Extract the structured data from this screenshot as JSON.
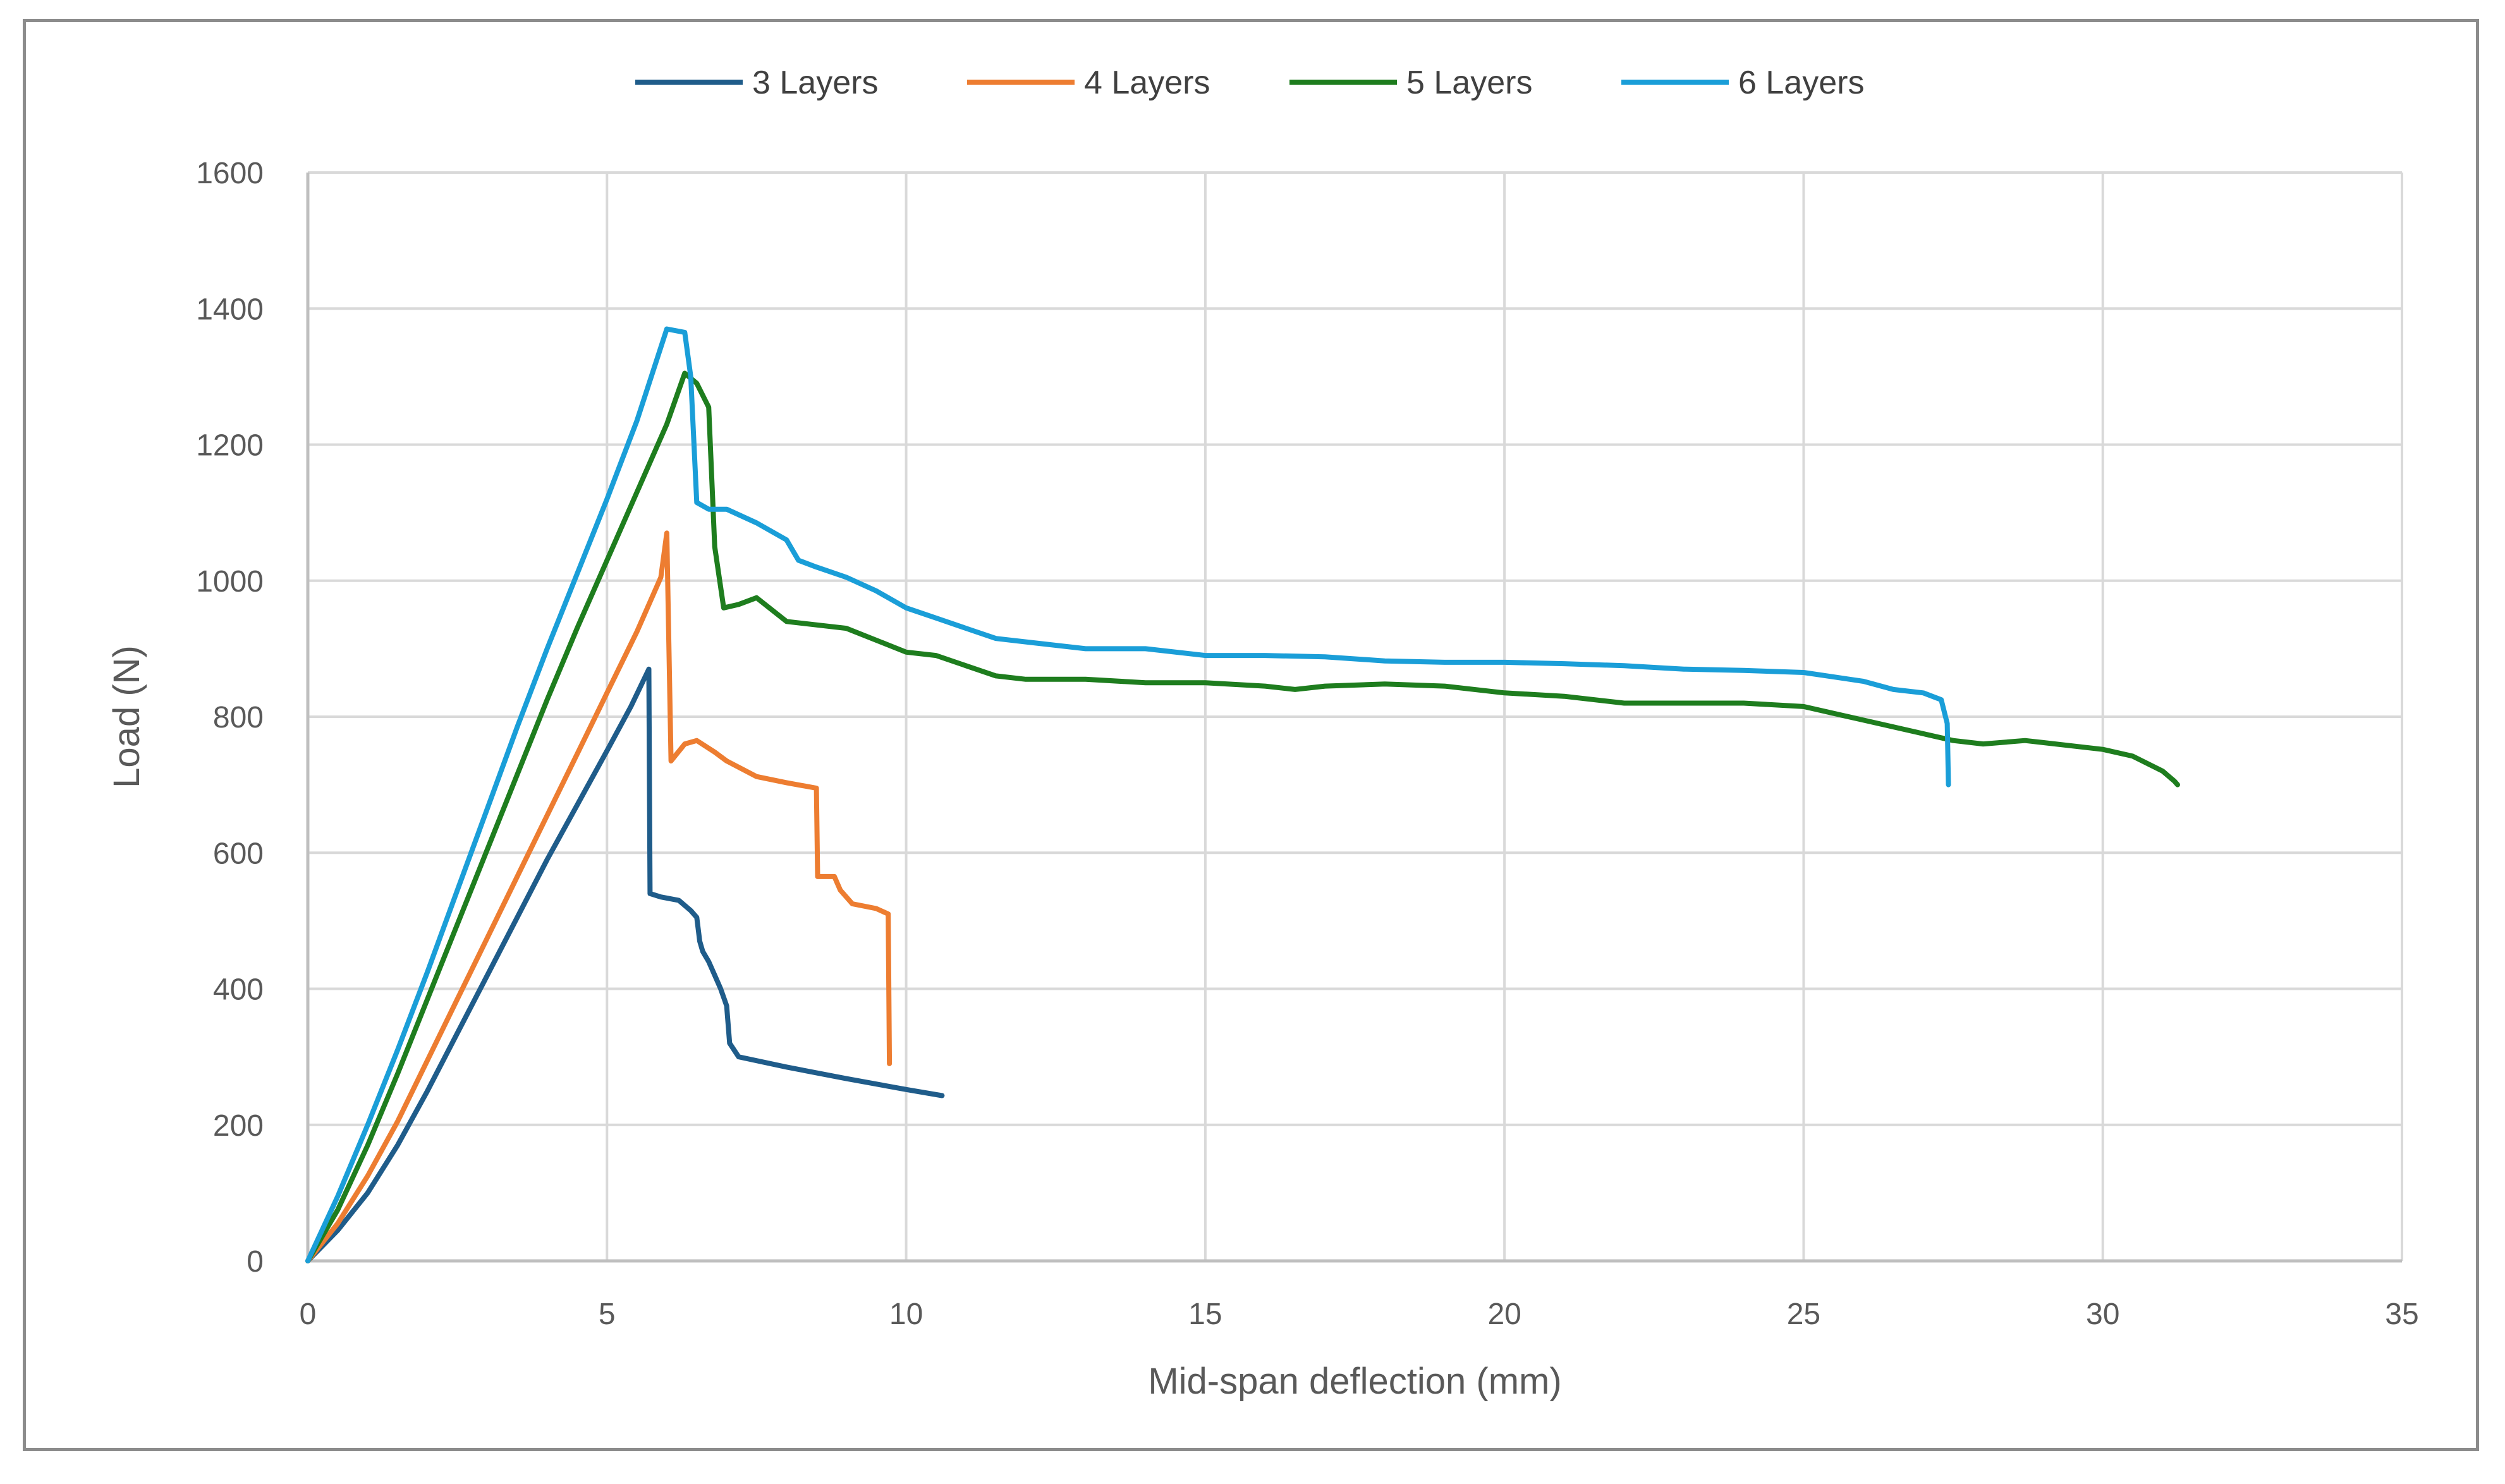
{
  "chart_data": {
    "type": "line",
    "title": "",
    "xlabel": "Mid-span deflection (mm)",
    "ylabel": "Load (N)",
    "xlim": [
      0,
      35
    ],
    "ylim": [
      0,
      1600
    ],
    "xticks": [
      "0",
      "5",
      "10",
      "15",
      "20",
      "25",
      "30",
      "35"
    ],
    "yticks": [
      "0",
      "200",
      "400",
      "600",
      "800",
      "1000",
      "1200",
      "1400",
      "1600"
    ],
    "grid": true,
    "legend_position": "top",
    "series": [
      {
        "name": "3 Layers",
        "color": "#1f5c8a",
        "points": [
          [
            0,
            0
          ],
          [
            0.5,
            45
          ],
          [
            1,
            100
          ],
          [
            1.5,
            170
          ],
          [
            2,
            250
          ],
          [
            2.5,
            335
          ],
          [
            3,
            420
          ],
          [
            3.5,
            505
          ],
          [
            4,
            590
          ],
          [
            4.5,
            670
          ],
          [
            5,
            750
          ],
          [
            5.4,
            815
          ],
          [
            5.7,
            870
          ],
          [
            5.72,
            540
          ],
          [
            5.9,
            535
          ],
          [
            6.2,
            530
          ],
          [
            6.4,
            515
          ],
          [
            6.5,
            505
          ],
          [
            6.55,
            470
          ],
          [
            6.6,
            455
          ],
          [
            6.7,
            440
          ],
          [
            6.8,
            420
          ],
          [
            6.9,
            400
          ],
          [
            7.0,
            375
          ],
          [
            7.05,
            320
          ],
          [
            7.2,
            300
          ],
          [
            8,
            285
          ],
          [
            9,
            268
          ],
          [
            10,
            252
          ],
          [
            10.6,
            243
          ]
        ]
      },
      {
        "name": "4 Layers",
        "color": "#ed7d31",
        "points": [
          [
            0,
            0
          ],
          [
            0.5,
            55
          ],
          [
            1,
            125
          ],
          [
            1.5,
            205
          ],
          [
            2,
            295
          ],
          [
            2.5,
            385
          ],
          [
            3,
            475
          ],
          [
            3.5,
            565
          ],
          [
            4,
            655
          ],
          [
            4.5,
            745
          ],
          [
            5,
            835
          ],
          [
            5.5,
            925
          ],
          [
            5.9,
            1005
          ],
          [
            6.0,
            1070
          ],
          [
            6.07,
            735
          ],
          [
            6.3,
            760
          ],
          [
            6.5,
            765
          ],
          [
            6.8,
            748
          ],
          [
            7.0,
            735
          ],
          [
            7.5,
            712
          ],
          [
            8,
            703
          ],
          [
            8.5,
            695
          ],
          [
            8.52,
            565
          ],
          [
            8.8,
            565
          ],
          [
            8.9,
            545
          ],
          [
            9.1,
            525
          ],
          [
            9.5,
            518
          ],
          [
            9.7,
            510
          ],
          [
            9.72,
            290
          ]
        ]
      },
      {
        "name": "5 Layers",
        "color": "#1e7d1e",
        "points": [
          [
            0,
            0
          ],
          [
            0.5,
            75
          ],
          [
            1,
            170
          ],
          [
            1.5,
            275
          ],
          [
            2,
            385
          ],
          [
            2.5,
            495
          ],
          [
            3,
            605
          ],
          [
            3.5,
            715
          ],
          [
            4,
            825
          ],
          [
            4.5,
            930
          ],
          [
            5,
            1030
          ],
          [
            5.5,
            1130
          ],
          [
            6,
            1230
          ],
          [
            6.3,
            1305
          ],
          [
            6.5,
            1290
          ],
          [
            6.7,
            1255
          ],
          [
            6.8,
            1050
          ],
          [
            6.95,
            960
          ],
          [
            7.2,
            965
          ],
          [
            7.5,
            975
          ],
          [
            8,
            940
          ],
          [
            9,
            930
          ],
          [
            10,
            895
          ],
          [
            10.5,
            890
          ],
          [
            11,
            875
          ],
          [
            11.5,
            860
          ],
          [
            12,
            855
          ],
          [
            13,
            855
          ],
          [
            14,
            850
          ],
          [
            15,
            850
          ],
          [
            16,
            845
          ],
          [
            16.5,
            840
          ],
          [
            17,
            845
          ],
          [
            18,
            848
          ],
          [
            19,
            845
          ],
          [
            20,
            835
          ],
          [
            21,
            830
          ],
          [
            22,
            820
          ],
          [
            23,
            820
          ],
          [
            24,
            820
          ],
          [
            25,
            815
          ],
          [
            26,
            795
          ],
          [
            27,
            775
          ],
          [
            27.5,
            765
          ],
          [
            28,
            760
          ],
          [
            28.7,
            765
          ],
          [
            29,
            762
          ],
          [
            30,
            752
          ],
          [
            30.5,
            742
          ],
          [
            31,
            720
          ],
          [
            31.2,
            705
          ],
          [
            31.25,
            700
          ]
        ]
      },
      {
        "name": "6 Layers",
        "color": "#1a9ed8",
        "points": [
          [
            0,
            0
          ],
          [
            0.5,
            95
          ],
          [
            1,
            200
          ],
          [
            1.5,
            310
          ],
          [
            2,
            425
          ],
          [
            2.5,
            545
          ],
          [
            3,
            665
          ],
          [
            3.5,
            785
          ],
          [
            4,
            900
          ],
          [
            4.5,
            1010
          ],
          [
            5,
            1120
          ],
          [
            5.5,
            1235
          ],
          [
            6,
            1370
          ],
          [
            6.3,
            1365
          ],
          [
            6.4,
            1300
          ],
          [
            6.5,
            1115
          ],
          [
            6.7,
            1105
          ],
          [
            7,
            1105
          ],
          [
            7.5,
            1085
          ],
          [
            8,
            1060
          ],
          [
            8.2,
            1030
          ],
          [
            8.5,
            1020
          ],
          [
            9,
            1005
          ],
          [
            9.5,
            985
          ],
          [
            10,
            960
          ],
          [
            10.5,
            945
          ],
          [
            11,
            930
          ],
          [
            11.5,
            915
          ],
          [
            12,
            910
          ],
          [
            13,
            900
          ],
          [
            14,
            900
          ],
          [
            15,
            890
          ],
          [
            16,
            890
          ],
          [
            17,
            888
          ],
          [
            18,
            882
          ],
          [
            19,
            880
          ],
          [
            20,
            880
          ],
          [
            21,
            878
          ],
          [
            22,
            875
          ],
          [
            23,
            870
          ],
          [
            24,
            868
          ],
          [
            25,
            865
          ],
          [
            26,
            852
          ],
          [
            26.5,
            840
          ],
          [
            27,
            835
          ],
          [
            27.3,
            825
          ],
          [
            27.4,
            790
          ],
          [
            27.42,
            700
          ]
        ]
      }
    ]
  }
}
